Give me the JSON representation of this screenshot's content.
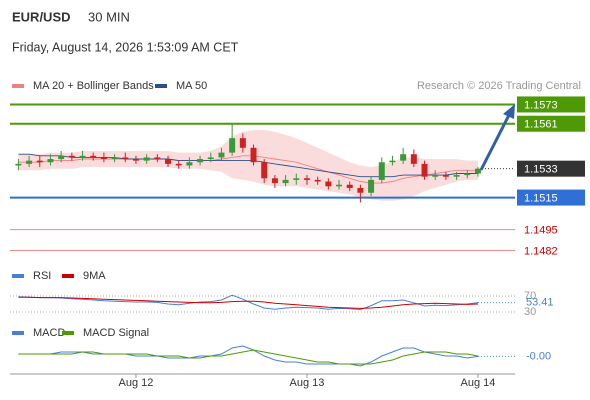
{
  "header": {
    "symbol": "EUR/USD",
    "interval": "30 MIN",
    "timestamp": "Friday, August 14, 2026 1:53:09 AM CET",
    "source": "Research © 2026 Trading Central"
  },
  "chart_data": [
    {
      "type": "candlestick",
      "categories": [
        null,
        null,
        null,
        null,
        null,
        null,
        null,
        null,
        null,
        null,
        null,
        "Aug 12",
        null,
        null,
        null,
        null,
        null,
        null,
        null,
        null,
        null,
        null,
        null,
        null,
        null,
        null,
        null,
        "Aug 13",
        null,
        null,
        null,
        null,
        null,
        null,
        null,
        null,
        null,
        null,
        null,
        null,
        null,
        null,
        null,
        "Aug 14"
      ],
      "open": [
        1.1535,
        1.1536,
        1.1538,
        1.1537,
        1.1539,
        1.1541,
        1.154,
        1.1541,
        1.154,
        1.1539,
        1.154,
        1.1539,
        1.1538,
        1.154,
        1.1539,
        1.1536,
        1.1535,
        1.1537,
        1.1539,
        1.154,
        1.1543,
        1.1552,
        1.1546,
        1.1537,
        1.1527,
        1.1524,
        1.1526,
        1.1527,
        1.1526,
        1.1525,
        1.1522,
        1.1523,
        1.1521,
        1.1518,
        1.1526,
        1.1537,
        1.1538,
        1.1542,
        1.1536,
        1.1528,
        1.1529,
        1.1528,
        1.1529,
        1.153
      ],
      "high": [
        1.1539,
        1.1541,
        1.1541,
        1.1542,
        1.1544,
        1.1543,
        1.1544,
        1.1543,
        1.1543,
        1.1542,
        1.1543,
        1.1541,
        1.1542,
        1.1542,
        1.1541,
        1.1538,
        1.154,
        1.1541,
        1.1543,
        1.1546,
        1.1561,
        1.1555,
        1.1548,
        1.1539,
        1.1529,
        1.1529,
        1.153,
        1.1529,
        1.1528,
        1.1527,
        1.1526,
        1.1525,
        1.1523,
        1.1528,
        1.154,
        1.1541,
        1.1546,
        1.1545,
        1.1538,
        1.1532,
        1.1531,
        1.1531,
        1.1532,
        1.1534
      ],
      "low": [
        1.1532,
        1.1534,
        1.1534,
        1.1535,
        1.1537,
        1.1538,
        1.1538,
        1.1538,
        1.1537,
        1.1537,
        1.1537,
        1.1536,
        1.1536,
        1.1537,
        1.1534,
        1.1533,
        1.1533,
        1.1535,
        1.1537,
        1.1538,
        1.1541,
        1.1543,
        1.1535,
        1.1524,
        1.1521,
        1.1522,
        1.1523,
        1.1523,
        1.1523,
        1.152,
        1.152,
        1.1519,
        1.1512,
        1.1516,
        1.1524,
        1.1535,
        1.1536,
        1.1534,
        1.1526,
        1.1526,
        1.1526,
        1.1526,
        1.1527,
        1.1528
      ],
      "close": [
        1.1536,
        1.1538,
        1.1537,
        1.1539,
        1.1541,
        1.154,
        1.1541,
        1.154,
        1.1539,
        1.154,
        1.1539,
        1.1538,
        1.154,
        1.1539,
        1.1536,
        1.1535,
        1.1537,
        1.1539,
        1.154,
        1.1543,
        1.1552,
        1.1546,
        1.1537,
        1.1527,
        1.1524,
        1.1526,
        1.1527,
        1.1526,
        1.1525,
        1.1522,
        1.1523,
        1.1521,
        1.1518,
        1.1526,
        1.1537,
        1.1538,
        1.1542,
        1.1536,
        1.1528,
        1.1529,
        1.1528,
        1.1529,
        1.153,
        1.1533
      ],
      "up_color": "#3a9a3a",
      "down_color": "#cc2222",
      "current_color": "#333333",
      "ylim": [
        1.1473,
        1.1582
      ],
      "series": [
        {
          "name": "MA 20 + Bollinger Bands",
          "color": "#f08080",
          "band_color": "#fadcdc",
          "values": [
            1.1537,
            1.1537,
            1.1537,
            1.1538,
            1.1538,
            1.1538,
            1.1539,
            1.1539,
            1.1539,
            1.1539,
            1.1539,
            1.1539,
            1.1539,
            1.1539,
            1.1539,
            1.1538,
            1.1538,
            1.1538,
            1.1538,
            1.1539,
            1.154,
            1.1541,
            1.1541,
            1.154,
            1.1539,
            1.1538,
            1.1537,
            1.1535,
            1.1533,
            1.1531,
            1.1529,
            1.1527,
            1.1525,
            1.1524,
            1.1524,
            1.1525,
            1.1527,
            1.1528,
            1.1529,
            1.153,
            1.1531,
            1.1532,
            1.1532,
            1.1532
          ],
          "upper": [
            1.1542,
            1.1542,
            1.1542,
            1.1543,
            1.1543,
            1.1543,
            1.1544,
            1.1544,
            1.1544,
            1.1544,
            1.1544,
            1.1544,
            1.1544,
            1.1544,
            1.1544,
            1.1543,
            1.1543,
            1.1543,
            1.1544,
            1.1547,
            1.1553,
            1.1556,
            1.1557,
            1.1557,
            1.1556,
            1.1554,
            1.1552,
            1.1549,
            1.1546,
            1.1543,
            1.154,
            1.1537,
            1.1535,
            1.1534,
            1.1535,
            1.1537,
            1.154,
            1.154,
            1.1539,
            1.1539,
            1.1539,
            1.1539,
            1.1538,
            1.1538
          ],
          "lower": [
            1.1532,
            1.1532,
            1.1532,
            1.1533,
            1.1533,
            1.1533,
            1.1534,
            1.1534,
            1.1534,
            1.1534,
            1.1534,
            1.1534,
            1.1534,
            1.1534,
            1.1534,
            1.1533,
            1.1533,
            1.1533,
            1.1532,
            1.1531,
            1.1527,
            1.1526,
            1.1525,
            1.1523,
            1.1522,
            1.1522,
            1.1522,
            1.1521,
            1.152,
            1.1519,
            1.1518,
            1.1517,
            1.1515,
            1.1514,
            1.1513,
            1.1513,
            1.1514,
            1.1516,
            1.1519,
            1.1521,
            1.1523,
            1.1525,
            1.1526,
            1.1526
          ]
        },
        {
          "name": "MA 50",
          "color": "#2b4f8a",
          "values": [
            1.1542,
            1.1542,
            1.1541,
            1.1541,
            1.1541,
            1.154,
            1.154,
            1.154,
            1.154,
            1.154,
            1.1539,
            1.1539,
            1.1539,
            1.1539,
            1.1539,
            1.1538,
            1.1538,
            1.1538,
            1.1538,
            1.1538,
            1.1538,
            1.1538,
            1.1538,
            1.1537,
            1.1536,
            1.1535,
            1.1534,
            1.1533,
            1.1532,
            1.1531,
            1.153,
            1.1529,
            1.1528,
            1.1528,
            1.1528,
            1.1528,
            1.1529,
            1.1529,
            1.1529,
            1.1529,
            1.1529,
            1.153,
            1.153,
            1.153
          ]
        }
      ],
      "levels": [
        {
          "value": 1.1573,
          "color": "#4e9a06",
          "style": "box"
        },
        {
          "value": 1.1561,
          "color": "#4e9a06",
          "style": "box"
        },
        {
          "value": 1.1515,
          "color": "#2f6fd6",
          "style": "box"
        },
        {
          "value": 1.1495,
          "color": "#cc0000",
          "style": "text"
        },
        {
          "value": 1.1482,
          "color": "#cc0000",
          "style": "text"
        }
      ]
    },
    {
      "type": "line",
      "ylim": [
        20,
        80
      ],
      "yticks": [
        30,
        70
      ],
      "grid": true,
      "series": [
        {
          "name": "RSI",
          "color": "#4a7fd6",
          "values": [
            68,
            67,
            66,
            66,
            65,
            63,
            62,
            60,
            58,
            57,
            56,
            55,
            55,
            54,
            50,
            48,
            52,
            55,
            56,
            60,
            72,
            62,
            50,
            40,
            37,
            40,
            42,
            41,
            40,
            37,
            39,
            38,
            36,
            46,
            58,
            58,
            60,
            53,
            45,
            47,
            46,
            48,
            50,
            53.41
          ]
        },
        {
          "name": "9MA",
          "color": "#cc0000",
          "values": [
            67,
            67,
            66,
            66,
            66,
            65,
            64,
            63,
            62,
            61,
            60,
            59,
            58,
            57,
            56,
            55,
            54,
            53,
            53,
            54,
            56,
            57,
            57,
            55,
            52,
            50,
            48,
            46,
            44,
            42,
            41,
            40,
            39,
            40,
            42,
            45,
            48,
            50,
            51,
            52,
            51,
            50,
            49,
            50
          ]
        }
      ]
    },
    {
      "type": "line",
      "ylim": [
        -0.0008,
        0.0008
      ],
      "current": {
        "value": -2e-05,
        "label": "-0.00"
      },
      "series": [
        {
          "name": "MACD",
          "color": "#4a7fd6",
          "values": [
            0.0001,
            0.0001,
            0.0001,
            0.0001,
            0.0002,
            0.0002,
            0.0002,
            0.0001,
            0.0001,
            0.0001,
            0.0001,
            0,
            0,
            0,
            -0.0001,
            -0.0001,
            -0.0001,
            0,
            0,
            0.0001,
            0.0004,
            0.0005,
            0.0003,
            0,
            -0.0002,
            -0.0003,
            -0.0003,
            -0.0004,
            -0.0004,
            -0.0004,
            -0.0004,
            -0.0004,
            -0.0005,
            -0.0003,
            0,
            0.0002,
            0.0004,
            0.0004,
            0.0002,
            0.0001,
            0,
            0,
            -0.0001,
            -2e-05
          ]
        },
        {
          "name": "MACD Signal",
          "color": "#4e9a06",
          "values": [
            0.0001,
            0.0001,
            0.0001,
            0.0001,
            0.0001,
            0.0001,
            0.0002,
            0.0002,
            0.0001,
            0.0001,
            0.0001,
            0.0001,
            0.0001,
            0,
            0,
            0,
            -0.0001,
            -0.0001,
            0,
            0,
            0.0001,
            0.0002,
            0.0003,
            0.0002,
            0.0001,
            0,
            -0.0001,
            -0.0002,
            -0.0003,
            -0.0003,
            -0.0004,
            -0.0004,
            -0.0004,
            -0.0004,
            -0.0003,
            -0.0002,
            0,
            0.0001,
            0.0002,
            0.0002,
            0.0002,
            0.0001,
            0.0001,
            0
          ]
        }
      ]
    }
  ]
}
